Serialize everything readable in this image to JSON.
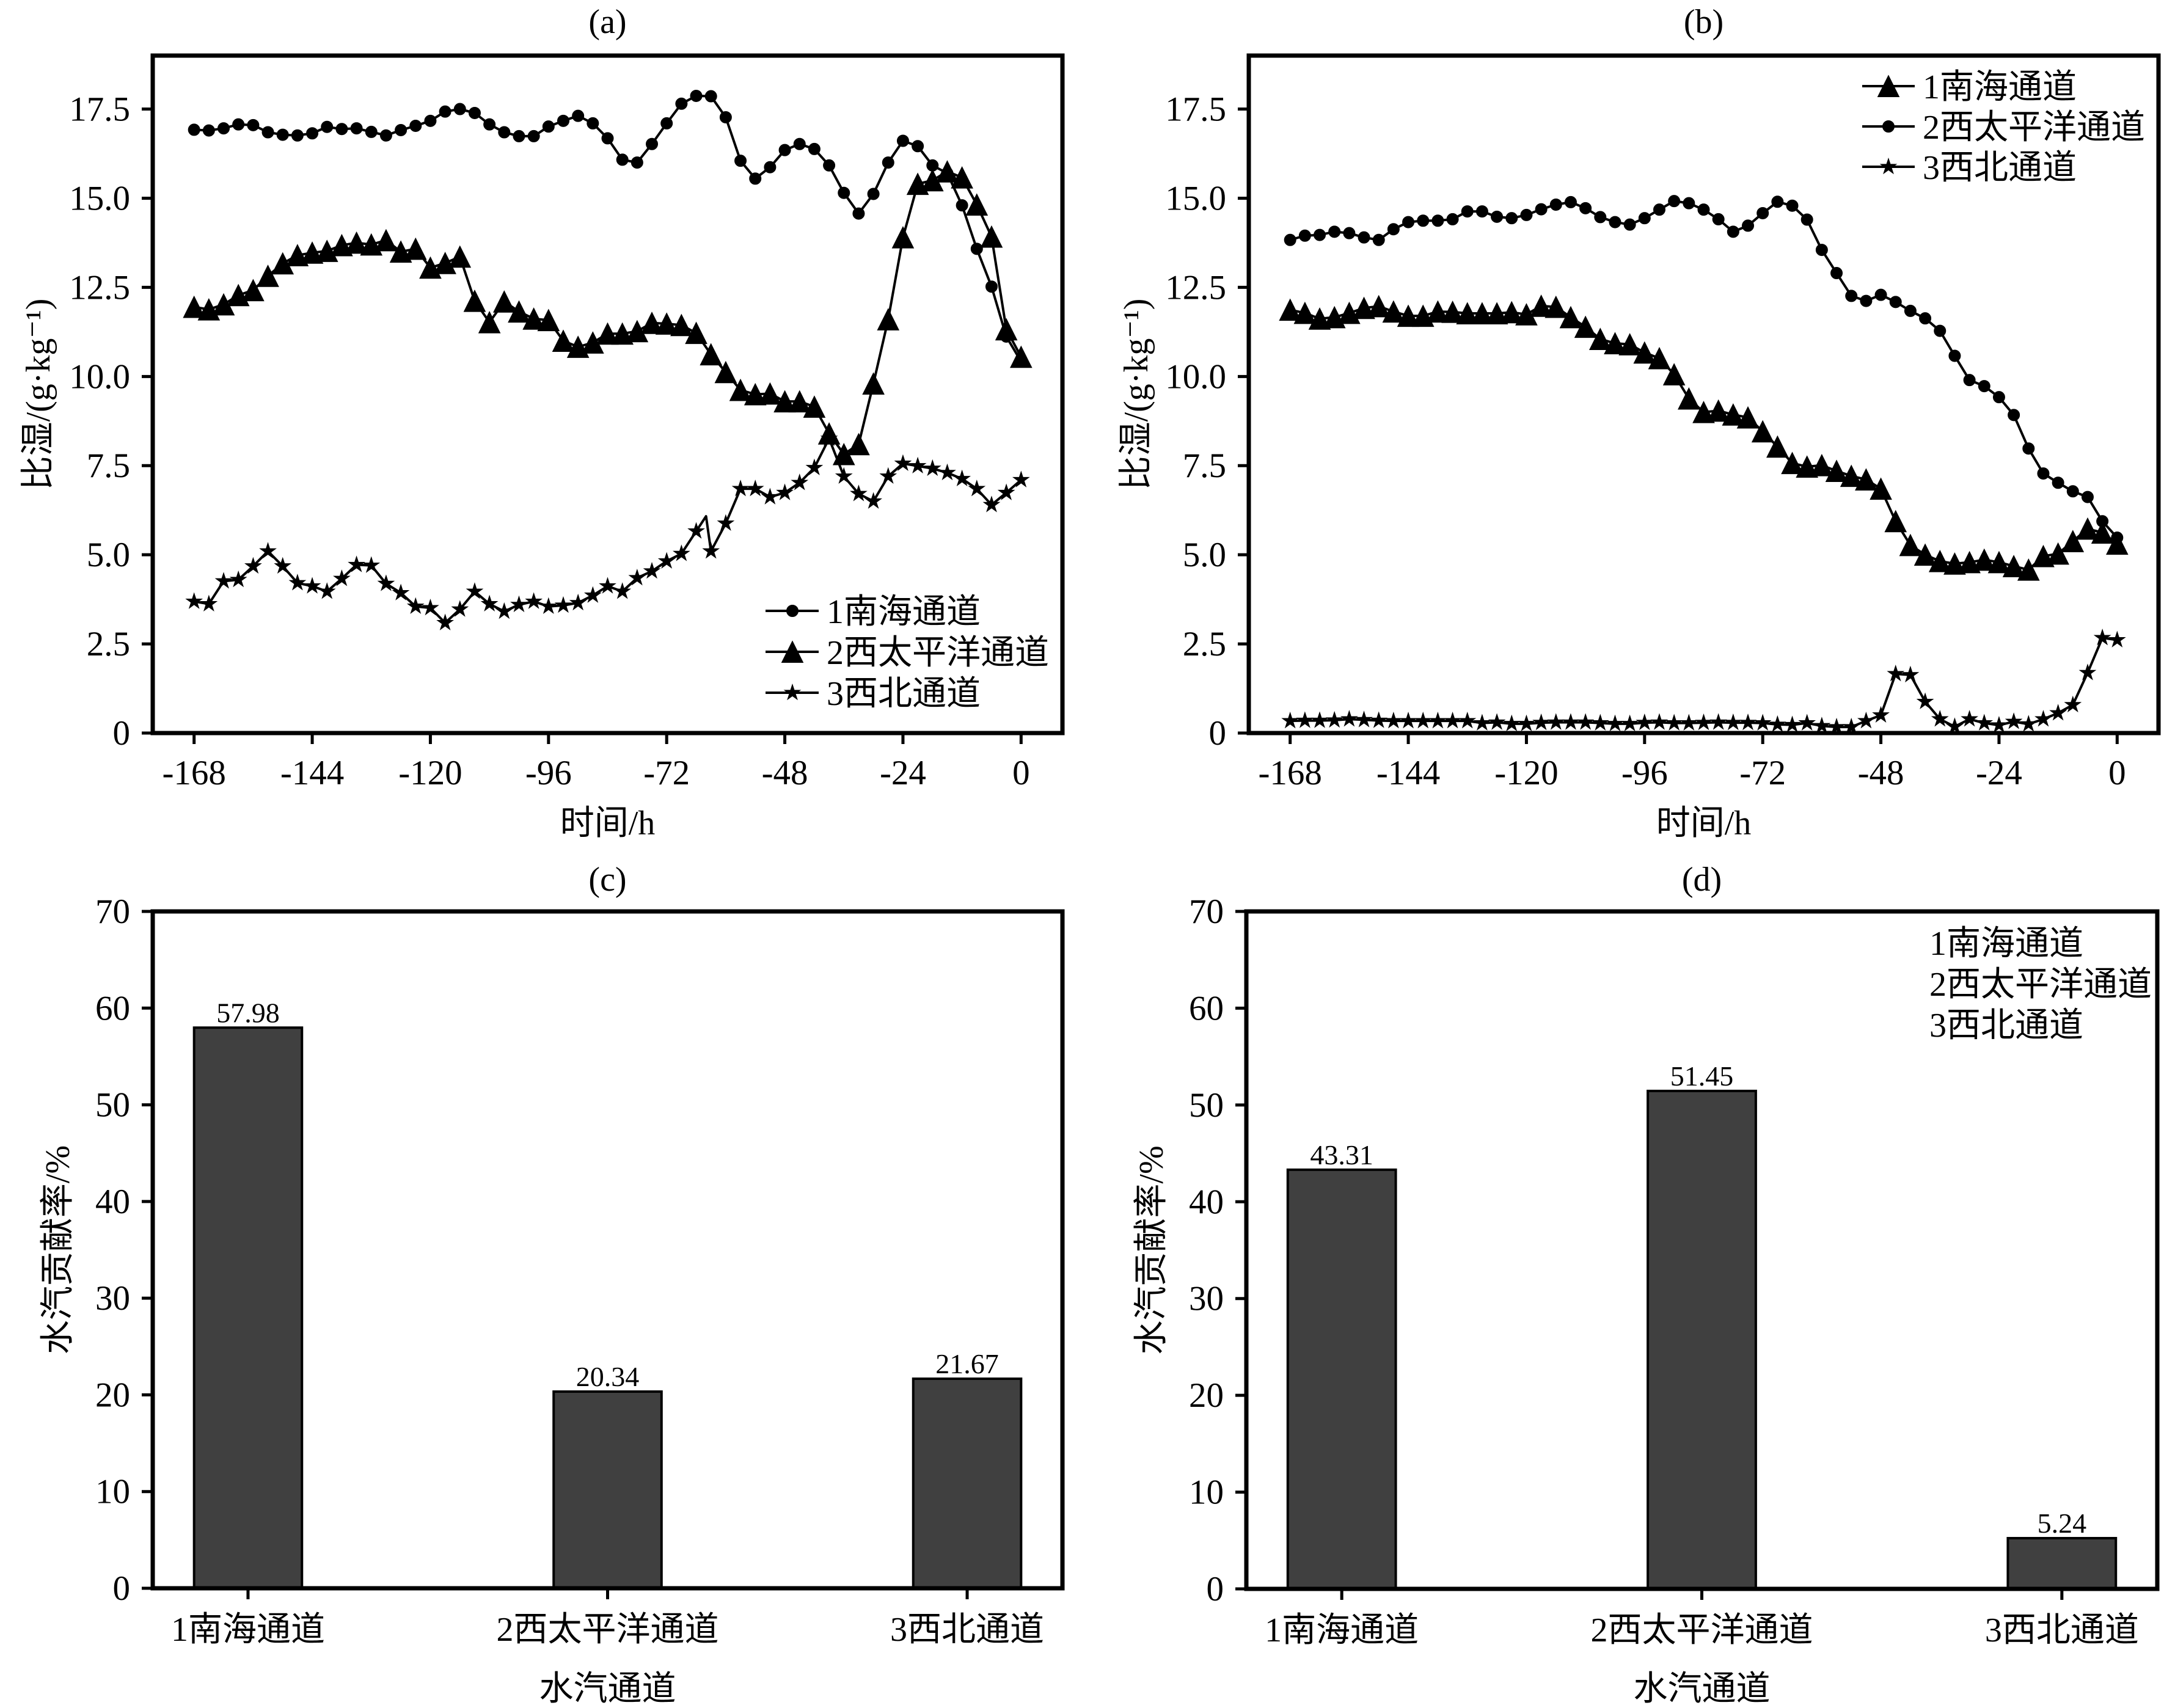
{
  "chart_data": [
    {
      "panel": "a",
      "type": "line",
      "title": "(a)",
      "xlabel": "时间/h",
      "ylabel": "比湿/(g·kg⁻¹)",
      "xlim": [
        -176.4,
        8.4
      ],
      "ylim": [
        0,
        19
      ],
      "xticks": [
        -168,
        -144,
        -120,
        -96,
        -72,
        -48,
        -24,
        0
      ],
      "yticks": [
        0,
        2.5,
        5,
        7.5,
        10,
        12.5,
        15,
        17.5
      ],
      "ytick_labels": [
        "0",
        "2.5",
        "5.0",
        "7.5",
        "10.0",
        "12.5",
        "15.0",
        "17.5"
      ],
      "grid": false,
      "legend_position": "lower-right",
      "line_color": "#000000",
      "x": [
        -168,
        -165,
        -162,
        -159,
        -156,
        -153,
        -150,
        -147,
        -144,
        -141,
        -138,
        -135,
        -132,
        -129,
        -126,
        -123,
        -120,
        -117,
        -114,
        -111,
        -108,
        -105,
        -102,
        -99,
        -96,
        -93,
        -90,
        -87,
        -84,
        -81,
        -78,
        -75,
        -72,
        -69,
        -66,
        -63,
        -60,
        -57,
        -54,
        -51,
        -48,
        -45,
        -42,
        -39,
        -36,
        -33,
        -30,
        -27,
        -24,
        -21,
        -18,
        -15,
        -12,
        -9,
        -6,
        -3,
        0
      ],
      "series": [
        {
          "name": "1南海通道",
          "marker": "circle",
          "values": [
            16.92,
            16.9,
            16.96,
            17.07,
            17.05,
            16.85,
            16.78,
            16.76,
            16.82,
            17.0,
            16.94,
            16.96,
            16.86,
            16.76,
            16.91,
            17.03,
            17.17,
            17.43,
            17.5,
            17.39,
            17.07,
            16.85,
            16.74,
            16.74,
            17.01,
            17.17,
            17.31,
            17.1,
            16.68,
            16.08,
            16.0,
            16.52,
            17.1,
            17.65,
            17.87,
            17.86,
            17.27,
            16.05,
            15.55,
            15.87,
            16.35,
            16.52,
            16.38,
            15.92,
            15.15,
            14.57,
            15.12,
            16.0,
            16.61,
            16.46,
            15.92,
            15.7,
            14.8,
            13.58,
            12.52,
            11.12,
            10.42
          ]
        },
        {
          "name": "2西太平洋通道",
          "marker": "triangle",
          "values": [
            11.95,
            11.88,
            12.02,
            12.28,
            12.42,
            12.82,
            13.17,
            13.4,
            13.47,
            13.52,
            13.68,
            13.75,
            13.7,
            13.82,
            13.5,
            13.58,
            13.05,
            13.18,
            13.36,
            12.12,
            11.52,
            12.1,
            11.82,
            11.62,
            11.58,
            11.0,
            10.83,
            10.95,
            11.2,
            11.2,
            11.27,
            11.5,
            11.48,
            11.44,
            11.22,
            10.62,
            10.12,
            9.62,
            9.5,
            9.52,
            9.3,
            9.3,
            9.15,
            8.4,
            7.82,
            8.1,
            9.8,
            11.6,
            13.9,
            15.4,
            15.5,
            15.75,
            15.58,
            14.82,
            13.92,
            11.32,
            10.55
          ]
        },
        {
          "name": "3西北通道",
          "marker": "star",
          "values": [
            3.69,
            3.62,
            4.26,
            4.3,
            4.68,
            5.1,
            4.68,
            4.21,
            4.12,
            3.97,
            4.33,
            4.72,
            4.7,
            4.19,
            3.93,
            3.55,
            3.51,
            3.09,
            3.47,
            3.97,
            3.62,
            3.41,
            3.6,
            3.69,
            3.55,
            3.58,
            3.65,
            3.86,
            4.12,
            3.97,
            4.35,
            4.54,
            4.82,
            5.03,
            5.66,
            5.1,
            5.88,
            6.85,
            6.85,
            6.62,
            6.74,
            7.02,
            7.44,
            8.26,
            7.2,
            6.71,
            6.5,
            7.2,
            7.56,
            7.49,
            7.42,
            7.3,
            7.13,
            6.85,
            6.4,
            6.74,
            7.1
          ],
          "line_only_points": [
            [
              -64,
              6.08
            ]
          ]
        }
      ]
    },
    {
      "panel": "b",
      "type": "line",
      "title": "(b)",
      "xlabel": "时间/h",
      "ylabel": "比湿/(g·kg⁻¹)",
      "xlim": [
        -176.4,
        8.4
      ],
      "ylim": [
        0,
        19
      ],
      "xticks": [
        -168,
        -144,
        -120,
        -96,
        -72,
        -48,
        -24,
        0
      ],
      "yticks": [
        0,
        2.5,
        5,
        7.5,
        10,
        12.5,
        15,
        17.5
      ],
      "ytick_labels": [
        "0",
        "2.5",
        "5.0",
        "7.5",
        "10.0",
        "12.5",
        "15.0",
        "17.5"
      ],
      "grid": false,
      "legend_position": "upper-right",
      "line_color": "#000000",
      "x": [
        -168,
        -165,
        -162,
        -159,
        -156,
        -153,
        -150,
        -147,
        -144,
        -141,
        -138,
        -135,
        -132,
        -129,
        -126,
        -123,
        -120,
        -117,
        -114,
        -111,
        -108,
        -105,
        -102,
        -99,
        -96,
        -93,
        -90,
        -87,
        -84,
        -81,
        -78,
        -75,
        -72,
        -69,
        -66,
        -63,
        -60,
        -57,
        -54,
        -51,
        -48,
        -45,
        -42,
        -39,
        -36,
        -33,
        -30,
        -27,
        -24,
        -21,
        -18,
        -15,
        -12,
        -9,
        -6,
        -3,
        0
      ],
      "series": [
        {
          "name": "1南海通道",
          "marker": "triangle",
          "values": [
            11.87,
            11.78,
            11.62,
            11.66,
            11.78,
            11.92,
            11.97,
            11.82,
            11.7,
            11.7,
            11.82,
            11.81,
            11.77,
            11.77,
            11.77,
            11.8,
            11.74,
            11.98,
            11.95,
            11.66,
            11.39,
            11.05,
            10.93,
            10.9,
            10.67,
            10.51,
            10.06,
            9.38,
            9.0,
            9.04,
            8.93,
            8.85,
            8.46,
            8.03,
            7.57,
            7.47,
            7.51,
            7.35,
            7.21,
            7.11,
            6.85,
            5.94,
            5.27,
            5.0,
            4.82,
            4.75,
            4.79,
            4.86,
            4.79,
            4.68,
            4.58,
            4.96,
            5.03,
            5.38,
            5.73,
            5.62,
            5.31
          ]
        },
        {
          "name": "2西太平洋通道",
          "marker": "circle",
          "values": [
            13.83,
            13.95,
            13.97,
            14.06,
            14.02,
            13.9,
            13.83,
            14.13,
            14.33,
            14.37,
            14.37,
            14.41,
            14.63,
            14.63,
            14.48,
            14.44,
            14.53,
            14.69,
            14.82,
            14.89,
            14.72,
            14.47,
            14.33,
            14.26,
            14.44,
            14.68,
            14.92,
            14.86,
            14.68,
            14.41,
            14.06,
            14.23,
            14.58,
            14.9,
            14.79,
            14.4,
            13.55,
            12.9,
            12.26,
            12.12,
            12.29,
            12.09,
            11.84,
            11.63,
            11.28,
            10.58,
            9.9,
            9.73,
            9.42,
            8.92,
            7.98,
            7.28,
            7.02,
            6.78,
            6.62,
            5.94,
            5.48
          ]
        },
        {
          "name": "3西北通道",
          "marker": "star",
          "values": [
            0.34,
            0.35,
            0.35,
            0.36,
            0.39,
            0.37,
            0.35,
            0.34,
            0.34,
            0.34,
            0.34,
            0.34,
            0.34,
            0.28,
            0.3,
            0.26,
            0.26,
            0.29,
            0.3,
            0.3,
            0.3,
            0.28,
            0.26,
            0.26,
            0.29,
            0.3,
            0.28,
            0.28,
            0.29,
            0.3,
            0.29,
            0.29,
            0.28,
            0.24,
            0.23,
            0.28,
            0.2,
            0.17,
            0.17,
            0.34,
            0.5,
            1.66,
            1.63,
            0.88,
            0.39,
            0.18,
            0.39,
            0.28,
            0.22,
            0.32,
            0.25,
            0.39,
            0.56,
            0.79,
            1.69,
            2.67,
            2.61
          ]
        }
      ]
    },
    {
      "panel": "c",
      "type": "bar",
      "title": "(c)",
      "xlabel": "水汽通道",
      "ylabel": "水汽贡献率/%",
      "categories": [
        "1南海通道",
        "2西太平洋通道",
        "3西北通道"
      ],
      "values": [
        57.98,
        20.34,
        21.67
      ],
      "xlim": [
        -0.265,
        2.265
      ],
      "ylim": [
        0,
        70
      ],
      "yticks": [
        0,
        10,
        20,
        30,
        40,
        50,
        60,
        70
      ],
      "grid": false,
      "bar_color": "#404040",
      "edge_color": "#000000"
    },
    {
      "panel": "d",
      "type": "bar",
      "title": "(d)",
      "xlabel": "水汽通道",
      "ylabel": "水汽贡献率/%",
      "categories": [
        "1南海通道",
        "2西太平洋通道",
        "3西北通道"
      ],
      "values": [
        43.31,
        51.45,
        5.24
      ],
      "xlim": [
        -0.265,
        2.265
      ],
      "ylim": [
        0,
        70
      ],
      "yticks": [
        0,
        10,
        20,
        30,
        40,
        50,
        60,
        70
      ],
      "grid": false,
      "bar_color": "#404040",
      "edge_color": "#000000",
      "legend_position": "upper-right",
      "legend_entries": [
        "1南海通道",
        "2西太平洋通道",
        "3西北通道"
      ]
    }
  ]
}
